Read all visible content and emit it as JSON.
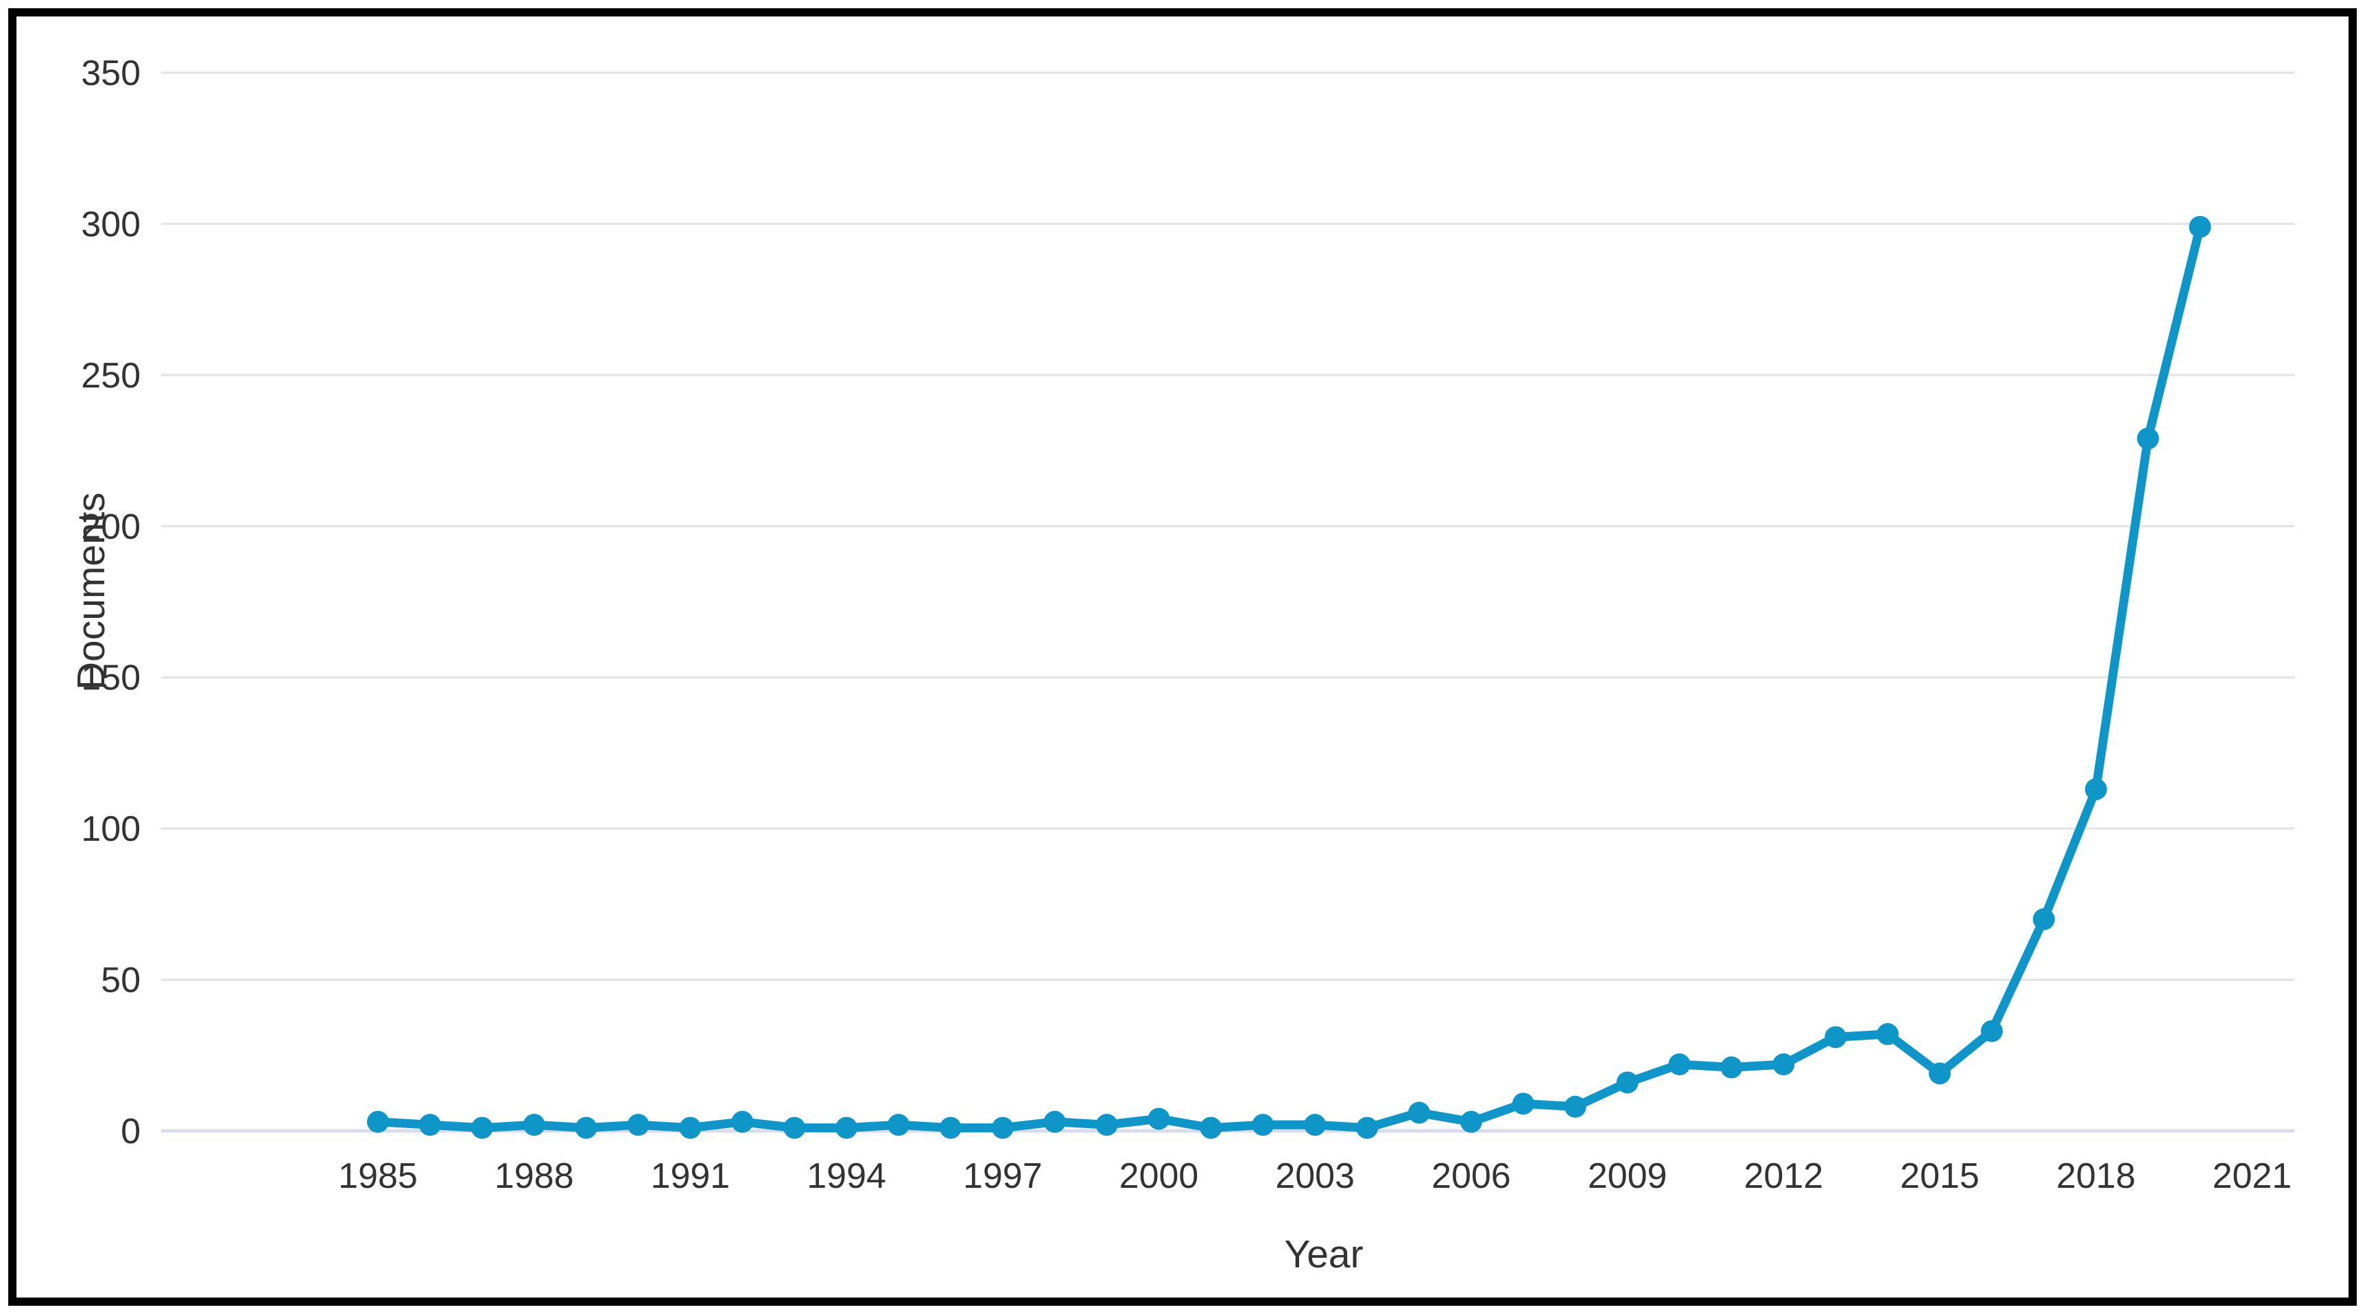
{
  "chart_data": {
    "type": "line",
    "title": "",
    "xlabel": "Year",
    "ylabel": "Documents",
    "x": [
      1985,
      1986,
      1987,
      1988,
      1989,
      1990,
      1991,
      1992,
      1993,
      1994,
      1995,
      1996,
      1997,
      1998,
      1999,
      2000,
      2001,
      2002,
      2003,
      2004,
      2005,
      2006,
      2007,
      2008,
      2009,
      2010,
      2011,
      2012,
      2013,
      2014,
      2015,
      2016,
      2017,
      2018,
      2019,
      2020
    ],
    "values": [
      3,
      2,
      1,
      2,
      1,
      2,
      1,
      3,
      1,
      1,
      2,
      1,
      1,
      3,
      2,
      4,
      1,
      2,
      2,
      1,
      6,
      3,
      9,
      8,
      16,
      22,
      21,
      22,
      31,
      32,
      19,
      33,
      70,
      113,
      229,
      299
    ],
    "series_name": "Documents",
    "x_tick_labels": [
      "1985",
      "1988",
      "1991",
      "1994",
      "1997",
      "2000",
      "2003",
      "2006",
      "2009",
      "2012",
      "2015",
      "2018",
      "2021"
    ],
    "x_tick_years": [
      1985,
      1988,
      1991,
      1994,
      1997,
      2000,
      2003,
      2006,
      2009,
      2012,
      2015,
      2018,
      2021
    ],
    "y_tick_labels": [
      "0",
      "50",
      "100",
      "150",
      "200",
      "250",
      "300",
      "350"
    ],
    "y_tick_values": [
      0,
      50,
      100,
      150,
      200,
      250,
      300,
      350
    ],
    "ylim": [
      0,
      350
    ],
    "x_axis_range": [
      1985,
      2021
    ],
    "grid": "horizontal-only",
    "legend_position": "none",
    "colors": {
      "line": "#1095c9",
      "marker": "#1095c9",
      "gridline": "#e2e2e2",
      "zero_line": "#d7dbec",
      "text": "#333333",
      "frame_border": "#000000",
      "background": "#ffffff"
    }
  }
}
